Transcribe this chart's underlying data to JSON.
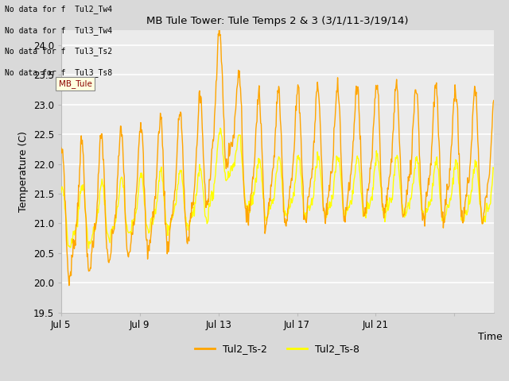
{
  "title": "MB Tule Tower: Tule Temps 2 & 3 (3/1/11-3/19/14)",
  "xlabel": "Time",
  "ylabel": "Temperature (C)",
  "ylim": [
    19.5,
    24.25
  ],
  "yticks": [
    19.5,
    20.0,
    20.5,
    21.0,
    21.5,
    22.0,
    22.5,
    23.0,
    23.5,
    24.0
  ],
  "xtick_positions": [
    0,
    4,
    8,
    12,
    16,
    20
  ],
  "xtick_labels": [
    "Jul 5",
    "Jul 9",
    "Jul 13",
    "Jul 17",
    "Jul 21",
    ""
  ],
  "fig_bg_color": "#d9d9d9",
  "plot_bg_color": "#ebebeb",
  "grid_color": "#ffffff",
  "legend_labels": [
    "Tul2_Ts-2",
    "Tul2_Ts-8"
  ],
  "line1_color": "#FFA500",
  "line2_color": "#FFFF00",
  "no_data_texts": [
    "No data for f  Tul2_Tw4",
    "No data for f  Tul3_Tw4",
    "No data for f  Tul3_Ts2",
    "No data for f  Tul3_Ts8"
  ],
  "tooltip_text": "MB_Tule",
  "n_days": 18,
  "xlim": [
    0,
    22
  ]
}
